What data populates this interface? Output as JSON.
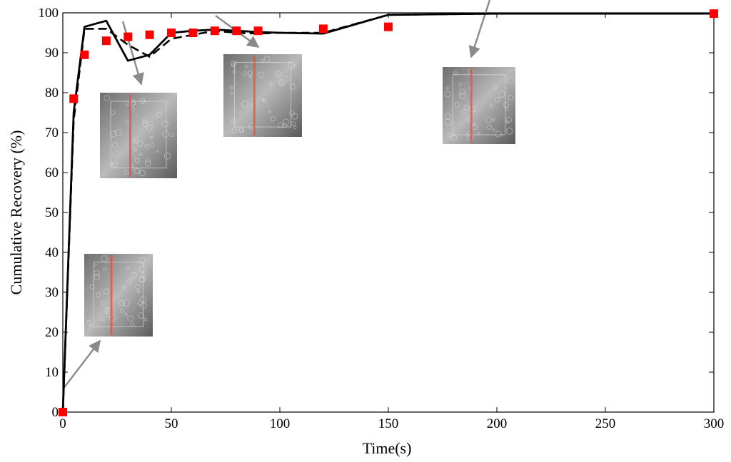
{
  "chart_data": {
    "type": "line",
    "title": "",
    "xlabel": "Time(s)",
    "ylabel": "Cumulative Recovery (%)",
    "xlim": [
      0,
      300
    ],
    "ylim": [
      0,
      100
    ],
    "xticks": [
      "0",
      "50",
      "100",
      "150",
      "200",
      "250",
      "300"
    ],
    "yticks": [
      "0",
      "10",
      "20",
      "30",
      "40",
      "50",
      "60",
      "70",
      "80",
      "90",
      "100"
    ],
    "grid": false,
    "series": [
      {
        "style": "solid",
        "color": "#000000",
        "x": [
          0,
          5,
          10,
          20,
          30,
          40,
          50,
          60,
          70,
          80,
          90,
          100,
          120,
          150,
          200,
          300
        ],
        "y": [
          0,
          75,
          96.5,
          98,
          88,
          89.5,
          95,
          95.5,
          95.8,
          95.5,
          95.2,
          95,
          94.8,
          99.5,
          99.8,
          99.8
        ]
      },
      {
        "style": "dashed",
        "color": "#000000",
        "x": [
          0,
          5,
          10,
          20,
          30,
          40,
          50,
          60,
          70,
          80,
          90,
          100,
          120,
          150,
          200,
          300
        ],
        "y": [
          0,
          73,
          96,
          96,
          92,
          89,
          93.5,
          94.5,
          95.5,
          95,
          94.8,
          95,
          95,
          99.5,
          99.8,
          99.8
        ]
      },
      {
        "style": "markers",
        "color": "#ff0000",
        "x": [
          0,
          5,
          10,
          20,
          30,
          40,
          50,
          60,
          70,
          80,
          90,
          120,
          150,
          300
        ],
        "y": [
          0,
          78.5,
          89.5,
          93,
          94,
          94.5,
          95,
          95,
          95.5,
          95.5,
          95.5,
          96,
          96.5,
          99.8
        ]
      }
    ],
    "insets": [
      {
        "name": "inset-t20",
        "arrow_target": [
          0,
          5
        ]
      },
      {
        "name": "inset-t35",
        "arrow_target": [
          27,
          99
        ]
      },
      {
        "name": "inset-t90",
        "arrow_target": [
          70,
          99
        ]
      },
      {
        "name": "inset-t190",
        "arrow_target": [
          195,
          99
        ]
      }
    ]
  }
}
